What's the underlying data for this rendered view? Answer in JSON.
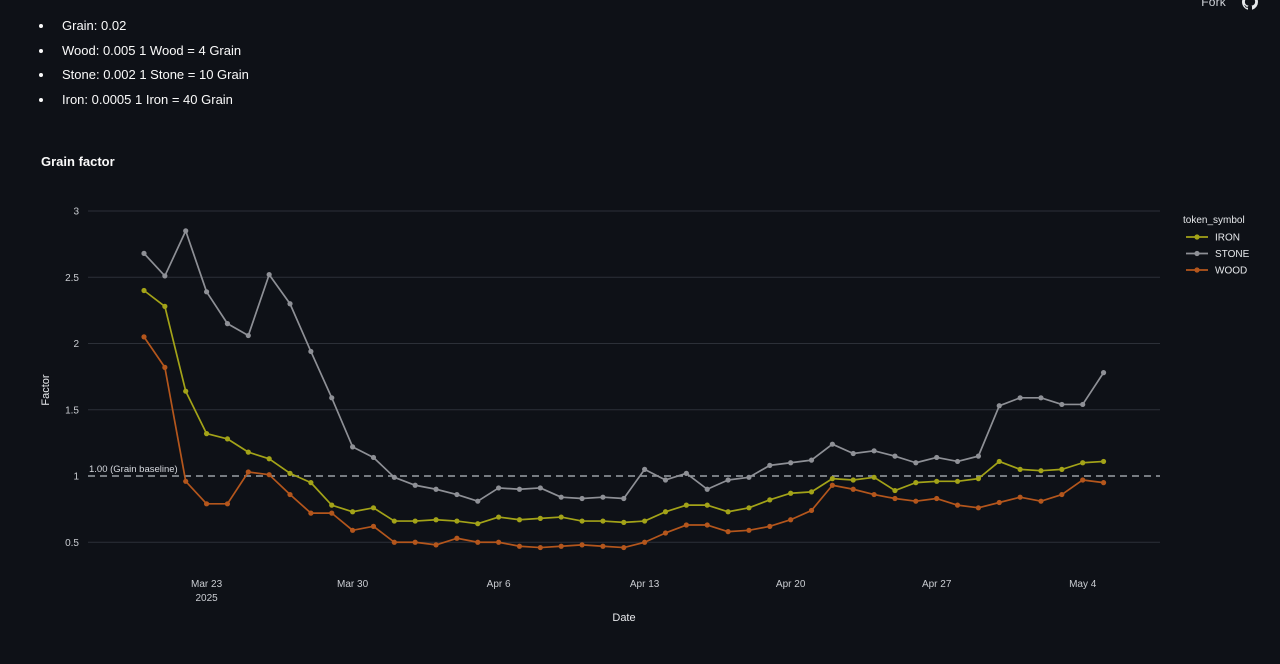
{
  "header": {
    "fork_label": "Fork",
    "github_icon": "github-icon"
  },
  "rates": [
    "Grain: 0.02",
    "Wood: 0.005 1 Wood = 4 Grain",
    "Stone: 0.002 1 Stone = 10 Grain",
    "Iron: 0.0005 1 Iron = 40 Grain"
  ],
  "chart_title": "Grain factor",
  "chart_data": {
    "type": "line",
    "title": "Grain factor",
    "xlabel": "Date",
    "ylabel": "Factor",
    "x_start": "2025-03-20",
    "x": [
      "2025-03-20",
      "2025-03-21",
      "2025-03-22",
      "2025-03-23",
      "2025-03-24",
      "2025-03-25",
      "2025-03-26",
      "2025-03-27",
      "2025-03-28",
      "2025-03-29",
      "2025-03-30",
      "2025-03-31",
      "2025-04-01",
      "2025-04-02",
      "2025-04-03",
      "2025-04-04",
      "2025-04-05",
      "2025-04-06",
      "2025-04-07",
      "2025-04-08",
      "2025-04-09",
      "2025-04-10",
      "2025-04-11",
      "2025-04-12",
      "2025-04-13",
      "2025-04-14",
      "2025-04-15",
      "2025-04-16",
      "2025-04-17",
      "2025-04-18",
      "2025-04-19",
      "2025-04-20",
      "2025-04-21",
      "2025-04-22",
      "2025-04-23",
      "2025-04-24",
      "2025-04-25",
      "2025-04-26",
      "2025-04-27",
      "2025-04-28",
      "2025-04-29",
      "2025-04-30",
      "2025-05-01",
      "2025-05-02",
      "2025-05-03",
      "2025-05-04",
      "2025-05-05"
    ],
    "x_ticks": [
      {
        "day": 3,
        "label": "Mar 23",
        "sublabel": "2025"
      },
      {
        "day": 10,
        "label": "Mar 30",
        "sublabel": ""
      },
      {
        "day": 17,
        "label": "Apr 6",
        "sublabel": ""
      },
      {
        "day": 24,
        "label": "Apr 13",
        "sublabel": ""
      },
      {
        "day": 31,
        "label": "Apr 20",
        "sublabel": ""
      },
      {
        "day": 38,
        "label": "Apr 27",
        "sublabel": ""
      },
      {
        "day": 45,
        "label": "May 4",
        "sublabel": ""
      }
    ],
    "y_ticks": [
      {
        "value": 0.5,
        "label": "0.5"
      },
      {
        "value": 1,
        "label": "1"
      },
      {
        "value": 1.5,
        "label": "1.5"
      },
      {
        "value": 2,
        "label": "2"
      },
      {
        "value": 2.5,
        "label": "2.5"
      },
      {
        "value": 3,
        "label": "3"
      }
    ],
    "ylim": [
      0.45,
      3.0
    ],
    "grid": true,
    "legend_title": "token_symbol",
    "legend_position": "top-right",
    "baseline": {
      "value": 1.0,
      "label": "1.00 (Grain baseline)",
      "color": "#9aa0a6",
      "style": "dashed"
    },
    "series": [
      {
        "name": "IRON",
        "color": "#a3a318",
        "values": [
          2.4,
          2.28,
          1.64,
          1.32,
          1.28,
          1.18,
          1.13,
          1.02,
          0.95,
          0.78,
          0.73,
          0.76,
          0.66,
          0.66,
          0.67,
          0.66,
          0.64,
          0.69,
          0.67,
          0.68,
          0.69,
          0.66,
          0.66,
          0.65,
          0.66,
          0.73,
          0.78,
          0.78,
          0.73,
          0.76,
          0.82,
          0.87,
          0.88,
          0.98,
          0.97,
          0.99,
          0.89,
          0.95,
          0.96,
          0.96,
          0.98,
          1.11,
          1.05,
          1.04,
          1.05,
          1.1,
          1.11
        ]
      },
      {
        "name": "STONE",
        "color": "#8e9096",
        "values": [
          2.68,
          2.51,
          2.85,
          2.39,
          2.15,
          2.06,
          2.52,
          2.3,
          1.94,
          1.59,
          1.22,
          1.14,
          0.99,
          0.93,
          0.9,
          0.86,
          0.81,
          0.91,
          0.9,
          0.91,
          0.84,
          0.83,
          0.84,
          0.83,
          1.05,
          0.97,
          1.02,
          0.9,
          0.97,
          0.99,
          1.08,
          1.1,
          1.12,
          1.24,
          1.17,
          1.19,
          1.15,
          1.1,
          1.14,
          1.11,
          1.15,
          1.53,
          1.59,
          1.59,
          1.54,
          1.54,
          1.78
        ]
      },
      {
        "name": "WOOD",
        "color": "#b4561c",
        "values": [
          2.05,
          1.82,
          0.96,
          0.79,
          0.79,
          1.03,
          1.01,
          0.86,
          0.72,
          0.72,
          0.59,
          0.62,
          0.5,
          0.5,
          0.48,
          0.53,
          0.5,
          0.5,
          0.47,
          0.46,
          0.47,
          0.48,
          0.47,
          0.46,
          0.5,
          0.57,
          0.63,
          0.63,
          0.58,
          0.59,
          0.62,
          0.67,
          0.74,
          0.93,
          0.9,
          0.86,
          0.83,
          0.81,
          0.83,
          0.78,
          0.76,
          0.8,
          0.84,
          0.81,
          0.86,
          0.97,
          0.95
        ]
      }
    ]
  },
  "colors": {
    "background": "#0e1117",
    "grid": "#2c3038",
    "text": "#fafafa"
  }
}
